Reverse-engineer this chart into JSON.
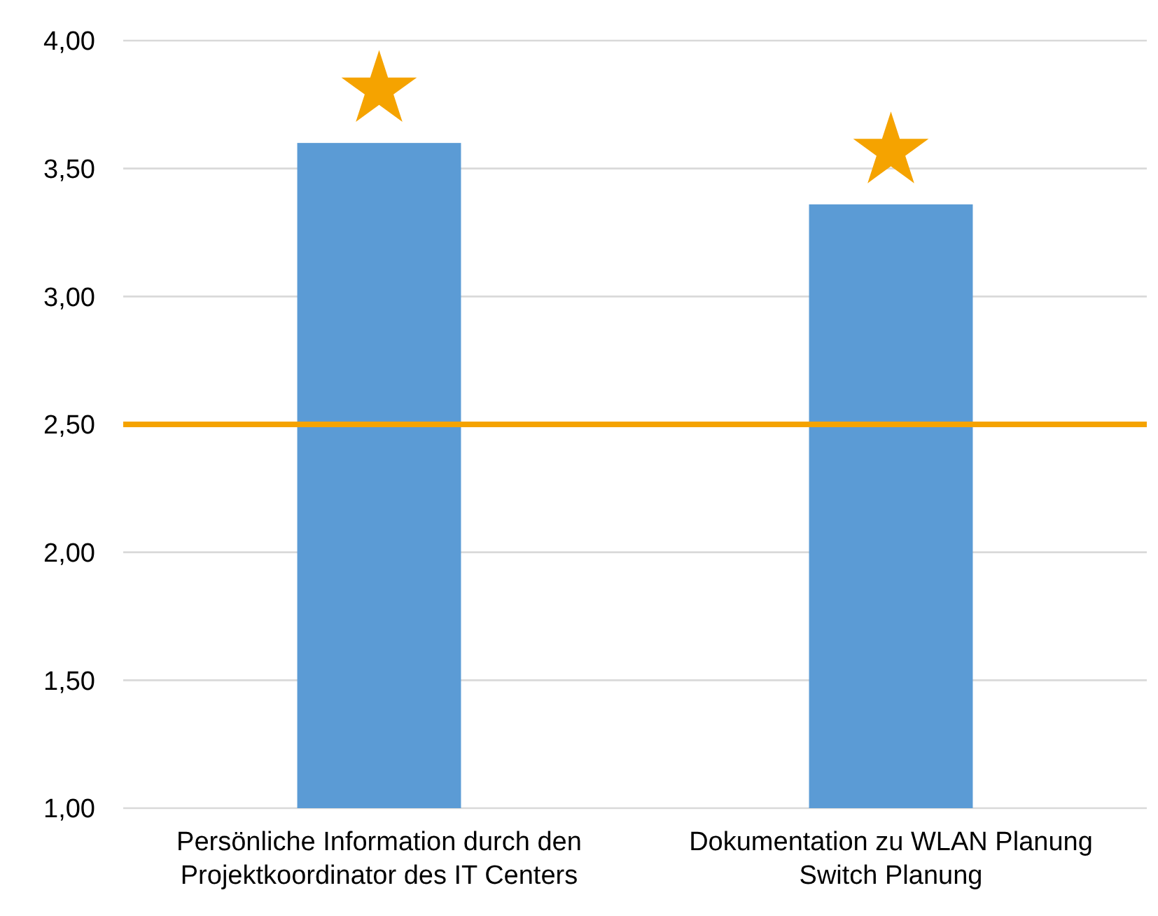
{
  "chart_data": {
    "type": "bar",
    "categories": [
      "Persönliche Information durch den\nProjektkoordinator des IT Centers",
      "Dokumentation zu WLAN Planung\nSwitch Planung"
    ],
    "values": [
      3.6,
      3.36
    ],
    "color": "#5b9bd5",
    "ylim": [
      1,
      4
    ],
    "yticks": [
      {
        "value": 1,
        "label": "1,00"
      },
      {
        "value": 1.5,
        "label": "1,50"
      },
      {
        "value": 2,
        "label": "2,00"
      },
      {
        "value": 2.5,
        "label": "2,50"
      },
      {
        "value": 3,
        "label": "3,00"
      },
      {
        "value": 3.5,
        "label": "3,50"
      },
      {
        "value": 4,
        "label": "4,00"
      }
    ],
    "grid": "y",
    "ref_lines": [
      {
        "axis": "y",
        "value": 2.5,
        "color": "#f5a300"
      }
    ]
  }
}
